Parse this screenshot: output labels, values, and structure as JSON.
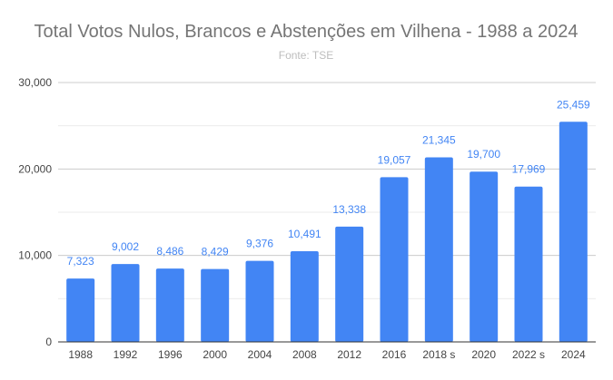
{
  "chart_data": {
    "type": "bar",
    "title": "Total Votos Nulos, Brancos e Abstenções em Vilhena - 1988 a 2024",
    "subtitle": "Fonte: TSE",
    "xlabel": "",
    "ylabel": "",
    "categories": [
      "1988",
      "1992",
      "1996",
      "2000",
      "2004",
      "2008",
      "2012",
      "2016",
      "2018 s",
      "2020",
      "2022 s",
      "2024"
    ],
    "values": [
      7323,
      9002,
      8486,
      8429,
      9376,
      10491,
      13338,
      19057,
      21345,
      19700,
      17969,
      25459
    ],
    "data_labels": [
      "7,323",
      "9,002",
      "8,486",
      "8,429",
      "9,376",
      "10,491",
      "13,338",
      "19,057",
      "21,345",
      "19,700",
      "17,969",
      "25,459"
    ],
    "ylim": [
      0,
      30000
    ],
    "yticks": [
      0,
      10000,
      20000,
      30000
    ],
    "ytick_labels": [
      "0",
      "10,000",
      "20,000",
      "30,000"
    ],
    "grid": true,
    "colors": {
      "bar": "#4285f4",
      "label": "#4285f4",
      "title": "#757575"
    }
  }
}
